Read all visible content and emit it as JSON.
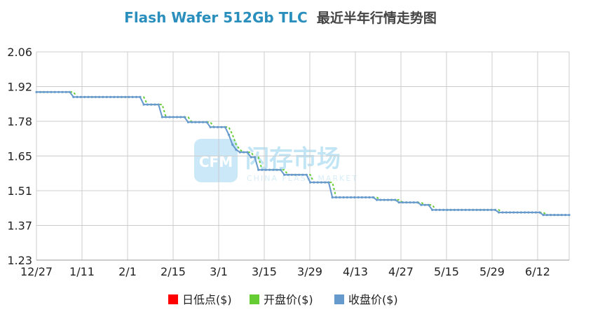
{
  "chart_data": {
    "type": "line",
    "title": "Flash Wafer 512Gb TLC",
    "subtitle": "最近半年行情走势图",
    "xlabel": "",
    "ylabel": "",
    "ylim": [
      1.23,
      2.06
    ],
    "y_ticks": [
      "2.06",
      "1.92",
      "1.78",
      "1.65",
      "1.51",
      "1.37",
      "1.23"
    ],
    "x_ticks": [
      "12/27",
      "1/11",
      "2/1",
      "2/15",
      "3/1",
      "3/15",
      "3/29",
      "4/13",
      "4/27",
      "5/15",
      "5/29",
      "6/12"
    ],
    "grid": true,
    "legend_position": "bottom",
    "legend": [
      {
        "name": "日低点($)",
        "color": "#ff0000"
      },
      {
        "name": "开盘价($)",
        "color": "#66cc33"
      },
      {
        "name": "收盘价($)",
        "color": "#6699cc"
      }
    ],
    "watermark": {
      "main": "闪存市场",
      "sub": "CHINA FLASH MARKET",
      "logo": "CFM"
    },
    "series": [
      {
        "name": "收盘价($)",
        "color": "#6699cc",
        "steps": [
          {
            "index": 0,
            "value": 1.9
          },
          {
            "index": 10,
            "value": 1.88
          },
          {
            "index": 29,
            "value": 1.85
          },
          {
            "index": 34,
            "value": 1.8
          },
          {
            "index": 41,
            "value": 1.78
          },
          {
            "index": 47,
            "value": 1.76
          },
          {
            "index": 52,
            "value": 1.73
          },
          {
            "index": 53,
            "value": 1.69
          },
          {
            "index": 54,
            "value": 1.67
          },
          {
            "index": 55,
            "value": 1.66
          },
          {
            "index": 58,
            "value": 1.64
          },
          {
            "index": 60,
            "value": 1.59
          },
          {
            "index": 67,
            "value": 1.57
          },
          {
            "index": 74,
            "value": 1.54
          },
          {
            "index": 80,
            "value": 1.48
          },
          {
            "index": 92,
            "value": 1.47
          },
          {
            "index": 98,
            "value": 1.46
          },
          {
            "index": 104,
            "value": 1.45
          },
          {
            "index": 107,
            "value": 1.43
          },
          {
            "index": 125,
            "value": 1.42
          },
          {
            "index": 137,
            "value": 1.41
          }
        ],
        "count": 145
      },
      {
        "name": "开盘价($)",
        "color": "#66cc33",
        "steps": [
          {
            "index": 0,
            "value": 1.9
          },
          {
            "index": 11,
            "value": 1.88
          },
          {
            "index": 30,
            "value": 1.85
          },
          {
            "index": 35,
            "value": 1.8
          },
          {
            "index": 42,
            "value": 1.78
          },
          {
            "index": 48,
            "value": 1.76
          },
          {
            "index": 53,
            "value": 1.73
          },
          {
            "index": 54,
            "value": 1.69
          },
          {
            "index": 55,
            "value": 1.67
          },
          {
            "index": 56,
            "value": 1.66
          },
          {
            "index": 59,
            "value": 1.64
          },
          {
            "index": 61,
            "value": 1.59
          },
          {
            "index": 68,
            "value": 1.57
          },
          {
            "index": 75,
            "value": 1.54
          },
          {
            "index": 81,
            "value": 1.48
          },
          {
            "index": 93,
            "value": 1.47
          },
          {
            "index": 99,
            "value": 1.46
          },
          {
            "index": 105,
            "value": 1.45
          },
          {
            "index": 108,
            "value": 1.43
          },
          {
            "index": 126,
            "value": 1.42
          },
          {
            "index": 138,
            "value": 1.41
          }
        ],
        "count": 145
      }
    ]
  }
}
